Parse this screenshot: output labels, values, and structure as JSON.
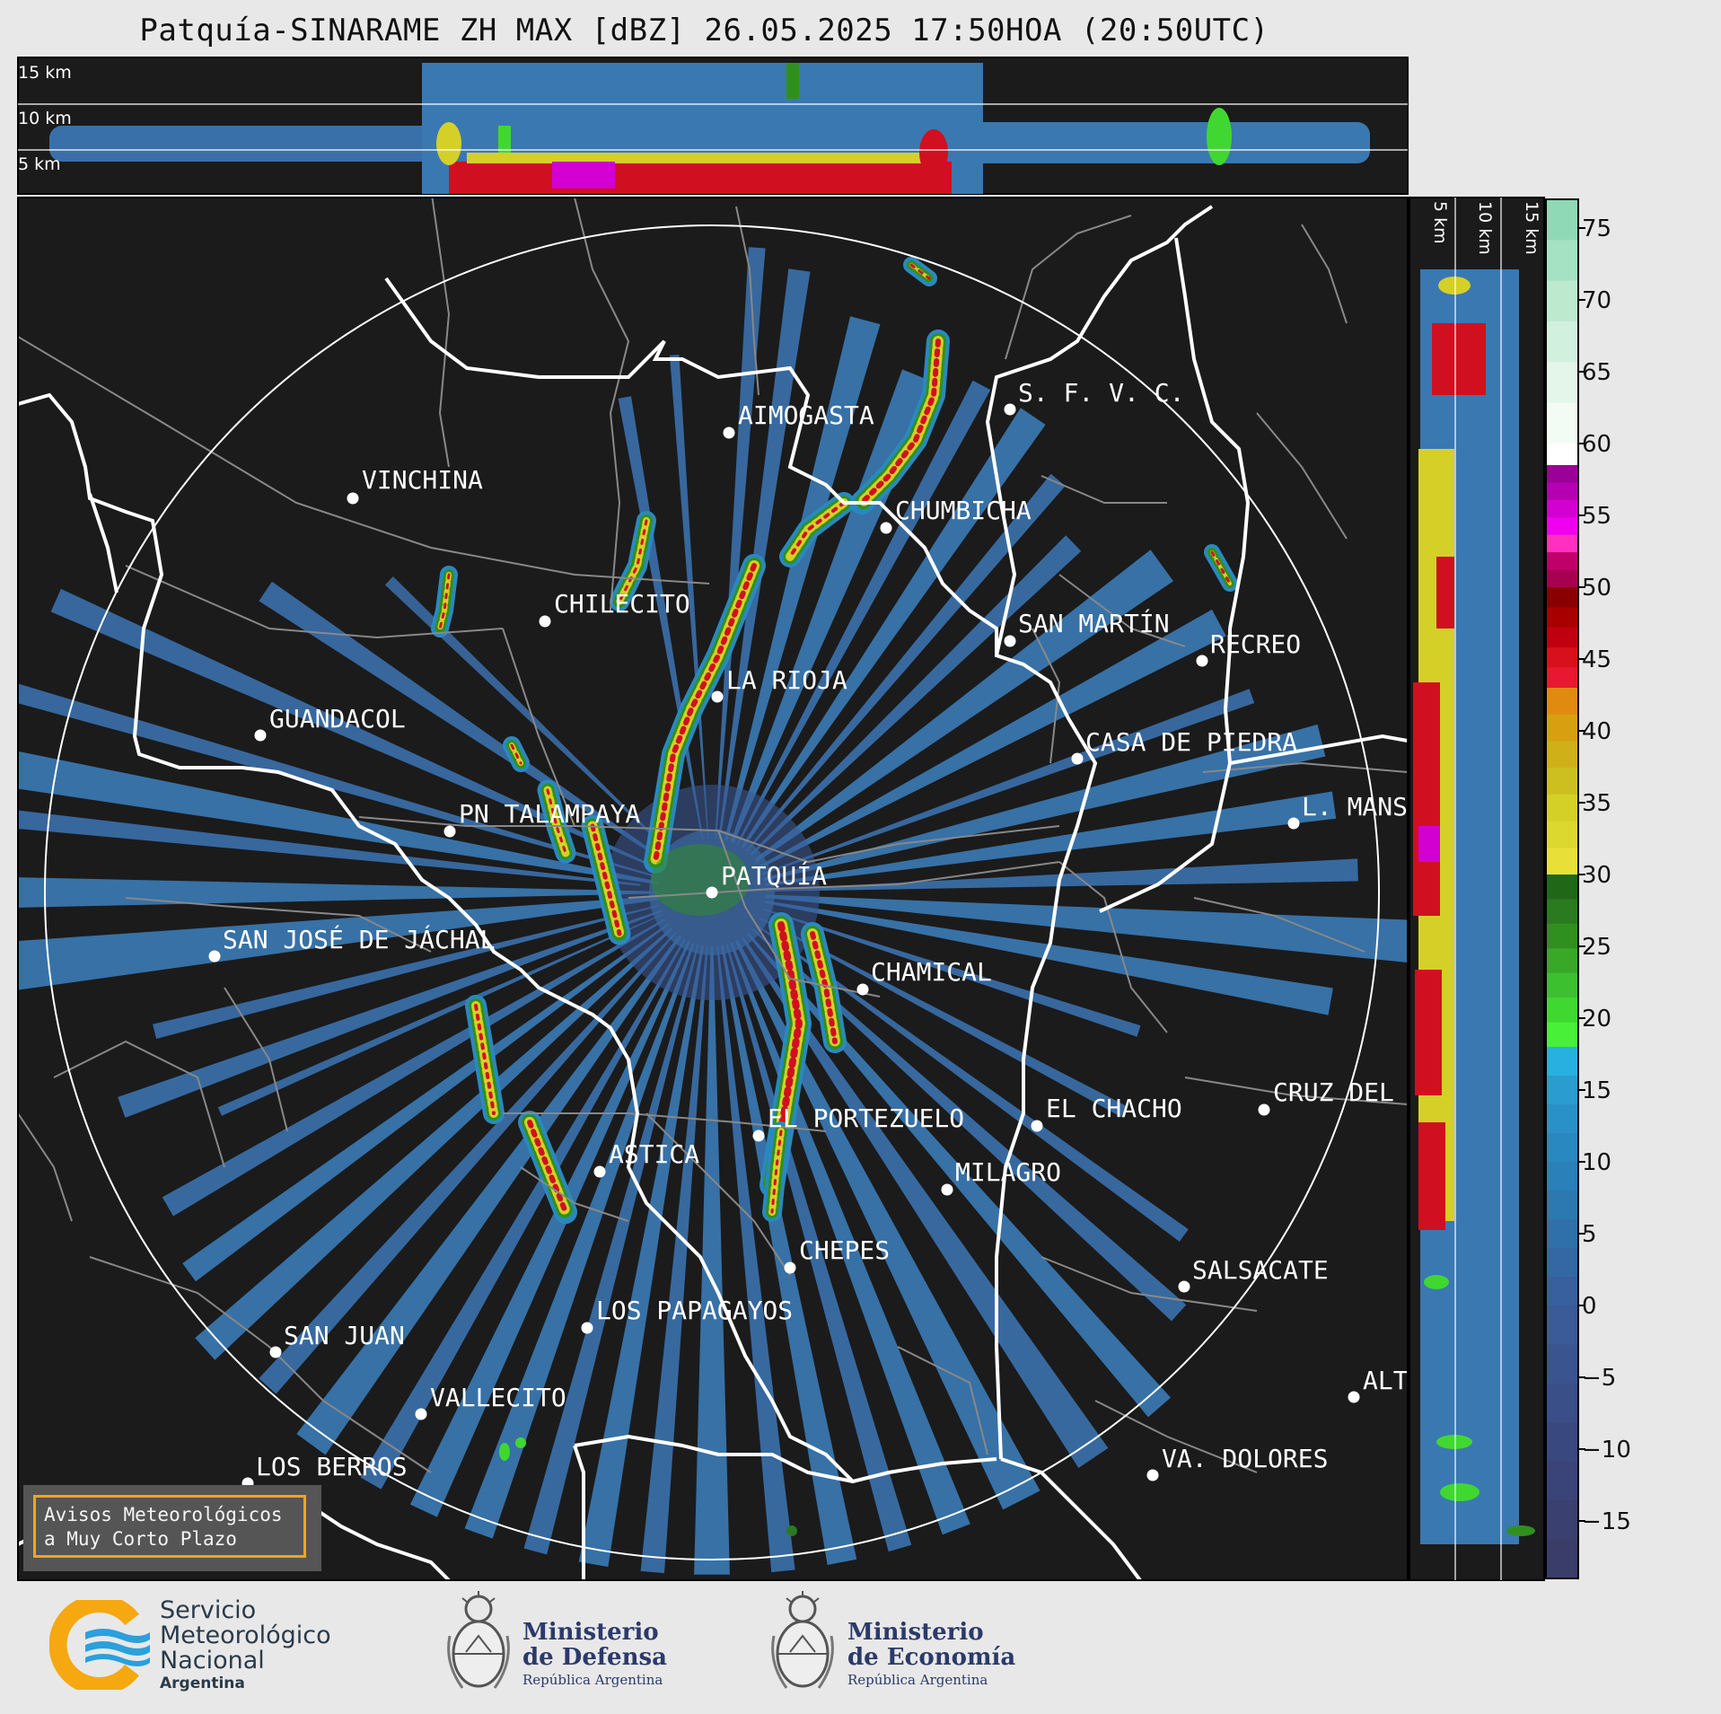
{
  "title": "Patquía-SINARAME ZH MAX [dBZ] 26.05.2025 17:50HOA (20:50UTC)",
  "top_profile": {
    "height_labels": [
      "15 km",
      "10 km",
      "5 km"
    ]
  },
  "side_profile": {
    "height_labels": [
      "5 km",
      "10 km",
      "15 km"
    ]
  },
  "colorbar": {
    "ticks": [
      "75",
      "70",
      "65",
      "60",
      "55",
      "50",
      "45",
      "40",
      "35",
      "30",
      "25",
      "20",
      "15",
      "10",
      "5",
      "0",
      "−5",
      "−10",
      "−15"
    ],
    "colors": {
      "pos_70": "#8fd9b6",
      "pos_60": "#ffffff",
      "pos_55": "#a000a0",
      "pos_52": "#ff10ff",
      "pos_50": "#c00050",
      "pos_45": "#d01020",
      "pos_40": "#e08a10",
      "pos_35": "#d4d020",
      "pos_30": "#2a7a20",
      "pos_22": "#40e030",
      "pos_17": "#28b0e0",
      "pos_10": "#2a88c0",
      "pos_5": "#3070b0",
      "pos_0": "#3a5a98",
      "neg": "#3a3a70"
    }
  },
  "cities": [
    {
      "name": "AIMOGASTA"
    },
    {
      "name": "S. F. V. C."
    },
    {
      "name": "VINCHINA"
    },
    {
      "name": "CHUMBICHA"
    },
    {
      "name": "CHILECITO"
    },
    {
      "name": "SAN MARTÍN"
    },
    {
      "name": "RECREO"
    },
    {
      "name": "LA RIOJA"
    },
    {
      "name": "GUANDACOL"
    },
    {
      "name": "CASA DE PIEDRA"
    },
    {
      "name": "L. MANS"
    },
    {
      "name": "PN TALAMPAYA"
    },
    {
      "name": "PATQUÍA"
    },
    {
      "name": "SAN JOSÉ DE JÁCHAL"
    },
    {
      "name": "CHAMICAL"
    },
    {
      "name": "EL CHACHO"
    },
    {
      "name": "CRUZ DEL"
    },
    {
      "name": "EL PORTEZUELO"
    },
    {
      "name": "ASTICA"
    },
    {
      "name": "MILAGRO"
    },
    {
      "name": "CHEPES"
    },
    {
      "name": "SALSACATE"
    },
    {
      "name": "LOS PAPAGAYOS"
    },
    {
      "name": "SAN JUAN"
    },
    {
      "name": "VALLECITO"
    },
    {
      "name": "ALT"
    },
    {
      "name": "LOS BERROS"
    },
    {
      "name": "VA. DOLORES"
    }
  ],
  "warning_box": {
    "line1": "Avisos Meteorológicos",
    "line2": "a Muy Corto Plazo"
  },
  "footer": {
    "smn": {
      "line1": "Servicio",
      "line2": "Meteorológico",
      "line3": "Nacional",
      "line4": "Argentina"
    },
    "defensa": {
      "line1": "Ministerio",
      "line2": "de Defensa",
      "line3": "República Argentina"
    },
    "economia": {
      "line1": "Ministerio",
      "line2": "de Economía",
      "line3": "República Argentina"
    }
  }
}
